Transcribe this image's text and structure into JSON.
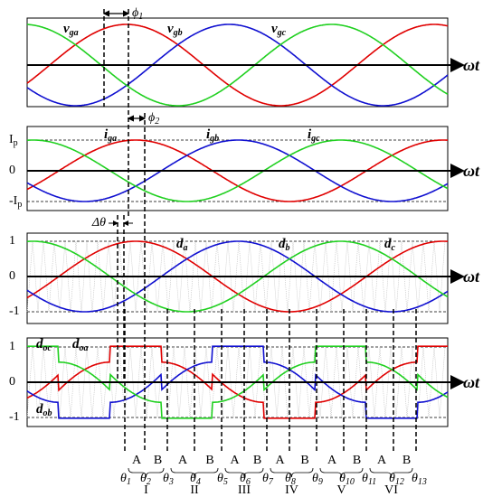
{
  "panels": [
    {
      "curve_labels": [
        {
          "text": "v",
          "sub": "ga"
        },
        {
          "text": "v",
          "sub": "gb"
        },
        {
          "text": "v",
          "sub": "gc"
        }
      ],
      "axis_label": "ωt",
      "phase_label": {
        "text": "ϕ",
        "sub": "1"
      }
    },
    {
      "curve_labels": [
        {
          "text": "i",
          "sub": "ga"
        },
        {
          "text": "i",
          "sub": "gb"
        },
        {
          "text": "i",
          "sub": "gc"
        }
      ],
      "axis_label": "ωt",
      "y_labels": [
        {
          "text": "I",
          "sub": "p"
        },
        "0",
        {
          "text": "-I",
          "sub": "p"
        }
      ],
      "phase_label": {
        "text": "ϕ",
        "sub": "2"
      }
    },
    {
      "curve_labels": [
        {
          "text": "d",
          "sub": "a"
        },
        {
          "text": "d",
          "sub": "b"
        },
        {
          "text": "d",
          "sub": "c"
        }
      ],
      "axis_label": "ωt",
      "y_labels": [
        "1",
        "0",
        "-1"
      ],
      "phase_label": "Δθ"
    },
    {
      "curve_labels": [
        {
          "text": "d",
          "sub": "oc"
        },
        {
          "text": "d",
          "sub": "oa"
        },
        {
          "text": "d",
          "sub": "ob"
        }
      ],
      "axis_label": "ωt",
      "y_labels": [
        "1",
        "0",
        "-1"
      ]
    }
  ],
  "sectors": {
    "angles": [
      {
        "text": "θ",
        "sub": "1"
      },
      {
        "text": "θ",
        "sub": "2"
      },
      {
        "text": "θ",
        "sub": "3"
      },
      {
        "text": "θ",
        "sub": "4"
      },
      {
        "text": "θ",
        "sub": "5"
      },
      {
        "text": "θ",
        "sub": "6"
      },
      {
        "text": "θ",
        "sub": "7"
      },
      {
        "text": "θ",
        "sub": "8"
      },
      {
        "text": "θ",
        "sub": "9"
      },
      {
        "text": "θ",
        "sub": "10"
      },
      {
        "text": "θ",
        "sub": "11"
      },
      {
        "text": "θ",
        "sub": "12"
      },
      {
        "text": "θ",
        "sub": "13"
      }
    ],
    "subsectors": [
      "A",
      "B",
      "A",
      "B",
      "A",
      "B",
      "A",
      "B",
      "A",
      "B",
      "A",
      "B"
    ],
    "groups": [
      "I",
      "II",
      "III",
      "IV",
      "V",
      "VI"
    ]
  }
}
